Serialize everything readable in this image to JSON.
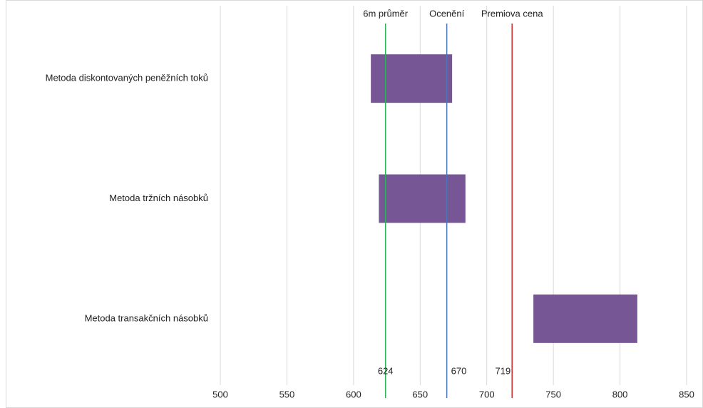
{
  "chart_data": {
    "type": "floating-bar",
    "categories": [
      "Metoda diskontovaných peněžních toků",
      "Metoda tržních násobků",
      "Metoda transakčních násobků"
    ],
    "low": [
      613,
      619,
      735
    ],
    "high": [
      674,
      684,
      813
    ],
    "color": "#765695",
    "reference_lines": [
      {
        "name": "6m průměr",
        "value": 624,
        "color": "#2bb35a"
      },
      {
        "name": "Ocenění",
        "value": 670,
        "color": "#4a76b8"
      },
      {
        "name": "Premiova cena",
        "value": 719,
        "color": "#d0282a"
      }
    ],
    "xlim": [
      500,
      850
    ],
    "xticks": [
      500,
      550,
      600,
      650,
      700,
      750,
      800,
      850
    ],
    "grid": true
  }
}
